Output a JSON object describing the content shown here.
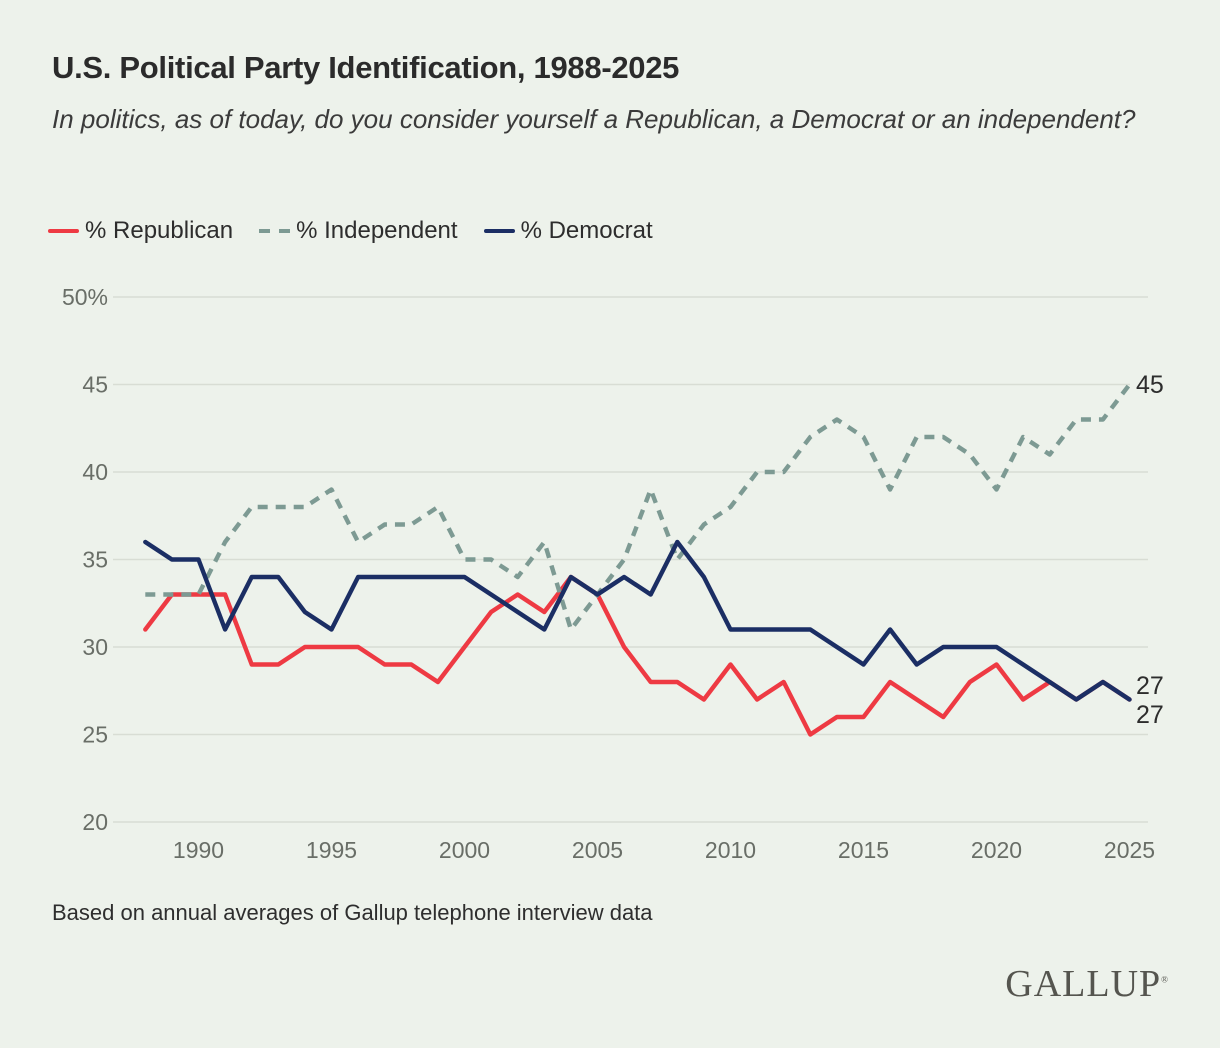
{
  "header": {
    "title": "U.S. Political Party Identification, 1988-2025",
    "subtitle": "In politics, as of today, do you consider yourself a Republican, a Democrat or an independent?"
  },
  "legend": [
    {
      "label": "% Republican",
      "color": "#ee3a43",
      "style": "solid"
    },
    {
      "label": "% Independent",
      "color": "#7d9a93",
      "style": "dashed"
    },
    {
      "label": "% Democrat",
      "color": "#1b2e64",
      "style": "solid"
    }
  ],
  "footer": {
    "note": "Based on annual averages of Gallup telephone interview data",
    "logo": "GALLUP",
    "logo_mark": "®"
  },
  "colors": {
    "background": "#edf2eb",
    "gridline": "#d8ddd4",
    "axis_text": "#696e67",
    "end_label_text": "#2d2d2d",
    "republican": "#ee3a43",
    "independent": "#7d9a93",
    "democrat": "#1b2e64"
  },
  "chart_data": {
    "type": "line",
    "title": "U.S. Political Party Identification, 1988-2025",
    "xlabel": "",
    "ylabel": "",
    "ylim": [
      20,
      50
    ],
    "grid": "horizontal",
    "legend_position": "top",
    "x": [
      1988,
      1989,
      1990,
      1991,
      1992,
      1993,
      1994,
      1995,
      1996,
      1997,
      1998,
      1999,
      2000,
      2001,
      2002,
      2003,
      2004,
      2005,
      2006,
      2007,
      2008,
      2009,
      2010,
      2011,
      2012,
      2013,
      2014,
      2015,
      2016,
      2017,
      2018,
      2019,
      2020,
      2021,
      2022,
      2023,
      2024,
      2025
    ],
    "series": [
      {
        "name": "% Republican",
        "color": "#ee3a43",
        "dash": false,
        "values": [
          31,
          33,
          33,
          33,
          29,
          29,
          30,
          30,
          30,
          29,
          29,
          28,
          30,
          32,
          33,
          32,
          34,
          33,
          30,
          28,
          28,
          27,
          29,
          27,
          28,
          25,
          26,
          26,
          28,
          27,
          26,
          28,
          29,
          27,
          28,
          27,
          28,
          27
        ]
      },
      {
        "name": "% Independent",
        "color": "#7d9a93",
        "dash": true,
        "values": [
          33,
          33,
          33,
          36,
          38,
          38,
          38,
          39,
          36,
          37,
          37,
          38,
          35,
          35,
          34,
          36,
          31,
          33,
          35,
          39,
          35,
          37,
          38,
          40,
          40,
          42,
          43,
          42,
          39,
          42,
          42,
          41,
          39,
          42,
          41,
          43,
          43,
          45
        ]
      },
      {
        "name": "% Democrat",
        "color": "#1b2e64",
        "dash": false,
        "values": [
          36,
          35,
          35,
          31,
          34,
          34,
          32,
          31,
          34,
          34,
          34,
          34,
          34,
          33,
          32,
          31,
          34,
          33,
          34,
          33,
          36,
          34,
          31,
          31,
          31,
          31,
          30,
          29,
          31,
          29,
          30,
          30,
          30,
          29,
          28,
          27,
          28,
          27
        ]
      }
    ],
    "y_ticks": [
      {
        "value": 50,
        "label": "50%"
      },
      {
        "value": 45,
        "label": "45"
      },
      {
        "value": 40,
        "label": "40"
      },
      {
        "value": 35,
        "label": "35"
      },
      {
        "value": 30,
        "label": "30"
      },
      {
        "value": 25,
        "label": "25"
      },
      {
        "value": 20,
        "label": "20"
      }
    ],
    "x_ticks": [
      {
        "value": 1990,
        "label": "1990"
      },
      {
        "value": 1995,
        "label": "1995"
      },
      {
        "value": 2000,
        "label": "2000"
      },
      {
        "value": 2005,
        "label": "2005"
      },
      {
        "value": 2010,
        "label": "2010"
      },
      {
        "value": 2015,
        "label": "2015"
      },
      {
        "value": 2020,
        "label": "2020"
      },
      {
        "value": 2025,
        "label": "2025"
      }
    ],
    "end_labels": [
      {
        "text": "45",
        "series": "% Independent",
        "value": 45,
        "dy": 0
      },
      {
        "text": "27",
        "series": "% Democrat",
        "value": 27,
        "dy": -14
      },
      {
        "text": "27",
        "series": "% Republican",
        "value": 27,
        "dy": 15
      }
    ]
  }
}
